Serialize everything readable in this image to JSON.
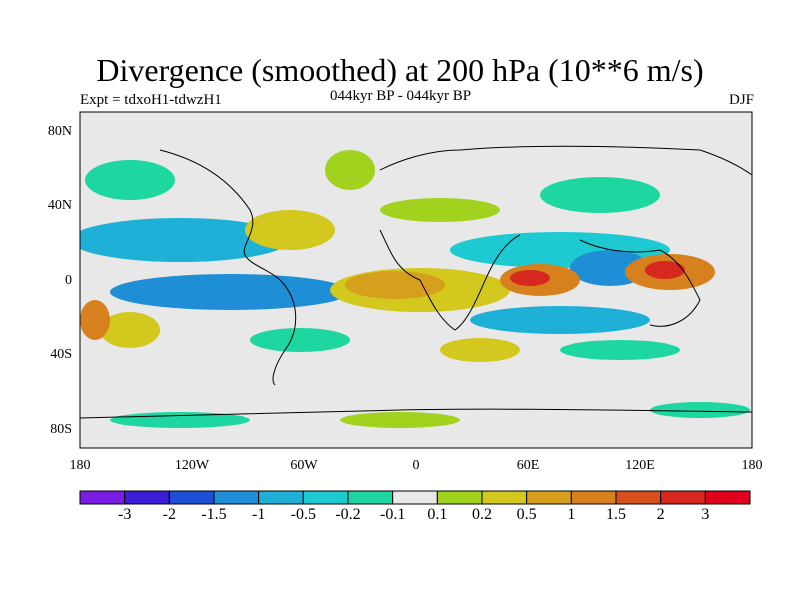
{
  "title": "Divergence (smoothed) at 200 hPa (10**6 m/s)",
  "experiment": "Expt = tdxoH1-tdwzH1",
  "period": "044kyr BP - 044kyr BP",
  "season": "DJF",
  "lat_labels": [
    "80N",
    "40N",
    "0",
    "40S",
    "80S"
  ],
  "lon_labels": [
    "180",
    "120W",
    "60W",
    "0",
    "60E",
    "120E",
    "180"
  ],
  "legend": {
    "labels": [
      "-3",
      "-2",
      "-1.5",
      "-1",
      "-0.5",
      "-0.2",
      "-0.1",
      "0.1",
      "0.2",
      "0.5",
      "1",
      "1.5",
      "2",
      "3"
    ],
    "colors": [
      "#7a1ee6",
      "#3a1ed6",
      "#1e50d6",
      "#1e8ed6",
      "#1eb0d6",
      "#1ecad2",
      "#1ed6a0",
      "#e8e8e8",
      "#a0d21e",
      "#d2c81e",
      "#d6a01e",
      "#d6801e",
      "#d6501e",
      "#d6281e",
      "#e0001e"
    ]
  },
  "chart_data": {
    "type": "contour-map",
    "variable": "Divergence (smoothed) at 200 hPa",
    "units": "10**6 m/s",
    "levels": [
      -3,
      -2,
      -1.5,
      -1,
      -0.5,
      -0.2,
      -0.1,
      0.1,
      0.2,
      0.5,
      1,
      1.5,
      2,
      3
    ],
    "lon_range": [
      -180,
      180
    ],
    "lat_range": [
      -90,
      90
    ],
    "features": [
      {
        "lon": 55,
        "lat": 0,
        "value": 2.5
      },
      {
        "lon": 135,
        "lat": 3,
        "value": 2.8
      },
      {
        "lon": 105,
        "lat": 0,
        "value": -1.2
      },
      {
        "lon": -130,
        "lat": -5,
        "value": -1.0
      },
      {
        "lon": 20,
        "lat": -10,
        "value": 0.8
      },
      {
        "lon": -45,
        "lat": 0,
        "value": 0.6
      }
    ]
  }
}
